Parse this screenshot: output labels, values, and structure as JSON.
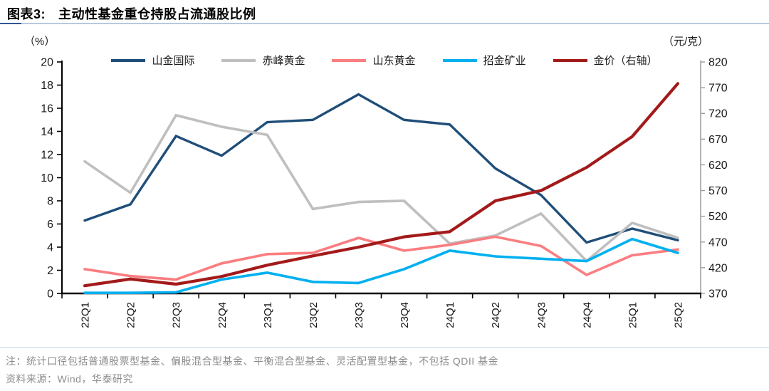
{
  "header": {
    "label": "图表3:",
    "title": "主动性基金重仓持股占流通股比例"
  },
  "chart_data": {
    "type": "line",
    "categories": [
      "22Q1",
      "22Q2",
      "22Q3",
      "22Q4",
      "23Q1",
      "23Q2",
      "23Q3",
      "23Q4",
      "24Q1",
      "24Q2",
      "24Q3",
      "24Q4",
      "25Q1",
      "25Q2"
    ],
    "series": [
      {
        "name": "山金国际",
        "axis": "left",
        "color": "#1F4E79",
        "width": 3.4,
        "values": [
          6.3,
          7.7,
          13.6,
          11.9,
          14.8,
          15.0,
          17.2,
          15.0,
          14.6,
          10.8,
          8.5,
          4.4,
          5.6,
          4.6
        ]
      },
      {
        "name": "赤峰黄金",
        "axis": "left",
        "color": "#BFBFBF",
        "width": 3.6,
        "values": [
          11.4,
          8.7,
          15.4,
          14.4,
          13.7,
          7.3,
          7.9,
          8.0,
          4.3,
          5.0,
          6.9,
          2.8,
          6.1,
          4.8
        ]
      },
      {
        "name": "山东黄金",
        "axis": "left",
        "color": "#FA7D80",
        "width": 3.6,
        "values": [
          2.1,
          1.5,
          1.2,
          2.6,
          3.4,
          3.5,
          4.8,
          3.7,
          4.2,
          4.9,
          4.1,
          1.6,
          3.3,
          3.8
        ]
      },
      {
        "name": "招金矿业",
        "axis": "left",
        "color": "#00B0F0",
        "width": 3.6,
        "values": [
          0.05,
          0.05,
          0.1,
          1.2,
          1.8,
          1.0,
          0.9,
          2.1,
          3.7,
          3.2,
          3.0,
          2.8,
          4.7,
          3.5
        ]
      },
      {
        "name": "金价（右轴）",
        "axis": "right",
        "color": "#A31A1A",
        "width": 4.2,
        "values": [
          385,
          398,
          388,
          403,
          425,
          443,
          460,
          480,
          490,
          550,
          570,
          615,
          675,
          778
        ]
      }
    ],
    "left_axis": {
      "unit": "（%）",
      "min": 0,
      "max": 20,
      "step": 2,
      "ticks": [
        0,
        2,
        4,
        6,
        8,
        10,
        12,
        14,
        16,
        18,
        20
      ]
    },
    "right_axis": {
      "unit": "（元/克）",
      "min": 370,
      "max": 820,
      "step": 50,
      "ticks": [
        370,
        420,
        470,
        520,
        570,
        620,
        670,
        720,
        770,
        820
      ]
    },
    "title": "主动性基金重仓持股占流通股比例",
    "grid": false,
    "legend_position": "top",
    "x_label_rotation": 90
  },
  "notes": {
    "note": "注：统计口径包括普通股票型基金、偏股混合型基金、平衡混合型基金、灵活配置型基金，不包括 QDII 基金",
    "source": "资料来源：Wind，华泰研究"
  }
}
